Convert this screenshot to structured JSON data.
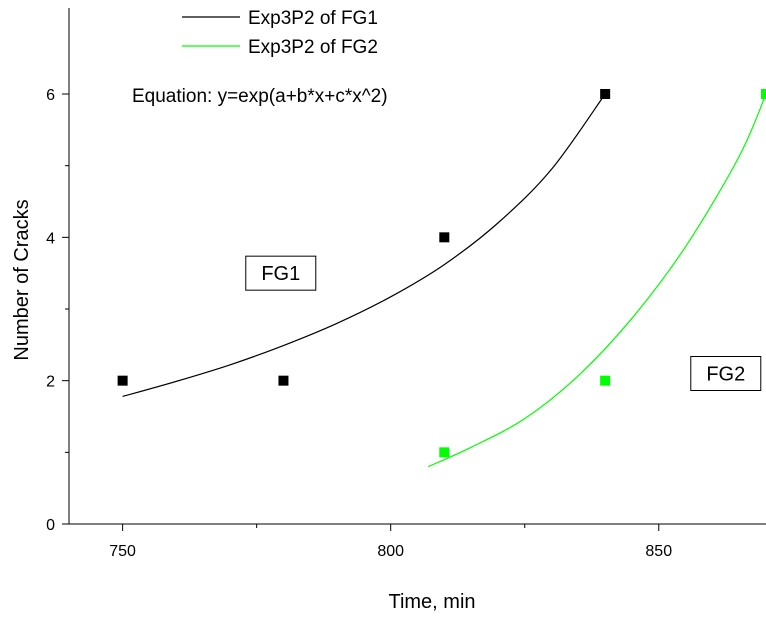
{
  "chart_data": {
    "type": "scatter",
    "title": "",
    "xlabel": "Time, min",
    "ylabel": "Number of Cracks",
    "xlim": [
      740,
      870
    ],
    "ylim": [
      0,
      7.2
    ],
    "x_ticks": [
      750,
      800,
      850
    ],
    "x_tick_labels": [
      "750",
      "800",
      "850"
    ],
    "x_minor_ticks": [
      775,
      825
    ],
    "y_ticks": [
      0,
      2,
      4,
      6
    ],
    "y_tick_labels": [
      "0",
      "2",
      "4",
      "6"
    ],
    "y_minor_ticks": [
      1,
      3,
      5
    ],
    "grid": false,
    "legend_position": "top-left",
    "equation": "Equation: y=exp(a+b*x+c*x^2)",
    "series": [
      {
        "name": "FG1",
        "color": "#000000",
        "points": [
          {
            "x": 750,
            "y": 2
          },
          {
            "x": 780,
            "y": 2
          },
          {
            "x": 810,
            "y": 4
          },
          {
            "x": 840,
            "y": 6
          }
        ],
        "fit": {
          "name": "Exp3P2 of FG1",
          "x": [
            750,
            760,
            770,
            780,
            790,
            800,
            810,
            820,
            830,
            840
          ],
          "y": [
            1.78,
            1.99,
            2.22,
            2.49,
            2.8,
            3.17,
            3.62,
            4.2,
            4.95,
            6.0
          ]
        },
        "label": "FG1"
      },
      {
        "name": "FG2",
        "color": "#00ff00",
        "points": [
          {
            "x": 810,
            "y": 1
          },
          {
            "x": 840,
            "y": 2
          },
          {
            "x": 870,
            "y": 6
          }
        ],
        "fit": {
          "name": "Exp3P2 of FG2",
          "x": [
            807,
            815,
            825,
            835,
            845,
            855,
            865,
            870
          ],
          "y": [
            0.8,
            1.07,
            1.47,
            2.07,
            2.87,
            3.87,
            5.13,
            6.0
          ]
        },
        "label": "FG2"
      }
    ]
  }
}
